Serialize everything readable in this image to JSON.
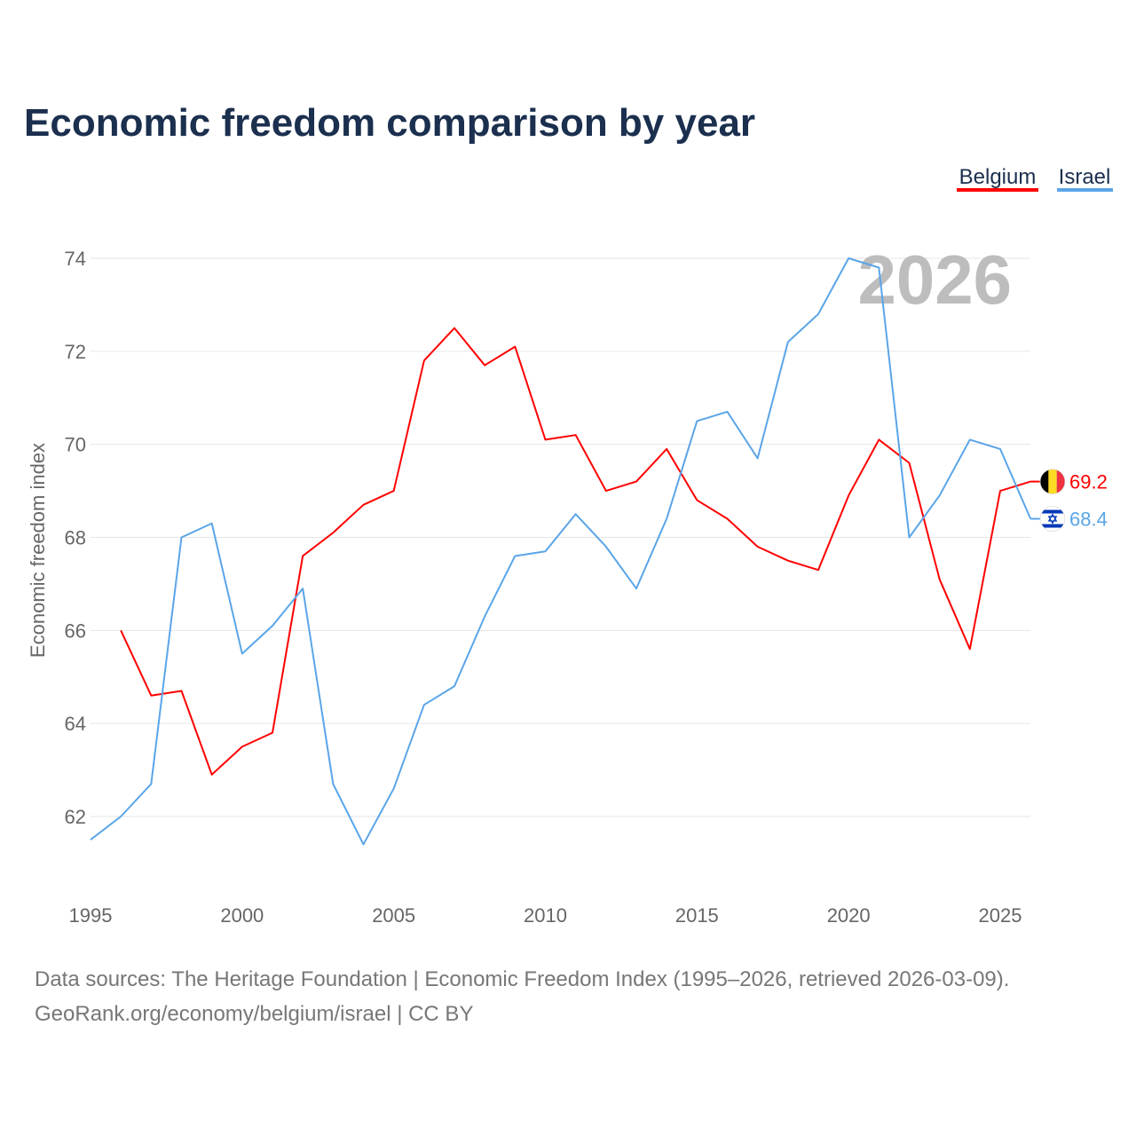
{
  "chart_data": {
    "type": "line",
    "title": "Economic freedom comparison by year",
    "xlabel": "",
    "ylabel": "Economic freedom index",
    "xlim": [
      1995,
      2026
    ],
    "ylim": [
      60.3,
      75
    ],
    "xticks": [
      1995,
      2000,
      2005,
      2010,
      2015,
      2020,
      2025
    ],
    "yticks": [
      62,
      64,
      66,
      68,
      70,
      72,
      74
    ],
    "grid": true,
    "legend_position": "top-right",
    "watermark": "2026",
    "series": [
      {
        "name": "Belgium",
        "color": "#ff0000",
        "end_label": "69.2",
        "flag": "belgium-flag",
        "x": [
          1996,
          1997,
          1998,
          1999,
          2000,
          2001,
          2002,
          2003,
          2004,
          2005,
          2006,
          2007,
          2008,
          2009,
          2010,
          2011,
          2012,
          2013,
          2014,
          2015,
          2016,
          2017,
          2018,
          2019,
          2020,
          2021,
          2022,
          2023,
          2024,
          2025,
          2026
        ],
        "values": [
          66.0,
          64.6,
          64.7,
          62.9,
          63.5,
          63.8,
          67.6,
          68.1,
          68.7,
          69.0,
          71.8,
          72.5,
          71.7,
          72.1,
          70.1,
          70.2,
          69.0,
          69.2,
          69.9,
          68.8,
          68.4,
          67.8,
          67.5,
          67.3,
          68.9,
          70.1,
          69.6,
          67.1,
          65.6,
          69.0,
          69.2
        ]
      },
      {
        "name": "Israel",
        "color": "#5aa5e8",
        "end_label": "68.4",
        "flag": "israel-flag",
        "x": [
          1995,
          1996,
          1997,
          1998,
          1999,
          2000,
          2001,
          2002,
          2003,
          2004,
          2005,
          2006,
          2007,
          2008,
          2009,
          2010,
          2011,
          2012,
          2013,
          2014,
          2015,
          2016,
          2017,
          2018,
          2019,
          2020,
          2021,
          2022,
          2023,
          2024,
          2025,
          2026
        ],
        "values": [
          61.5,
          62.0,
          62.7,
          68.0,
          68.3,
          65.5,
          66.1,
          66.9,
          62.7,
          61.4,
          62.6,
          64.4,
          64.8,
          66.3,
          67.6,
          67.7,
          68.5,
          67.8,
          66.9,
          68.4,
          70.5,
          70.7,
          69.7,
          72.2,
          72.8,
          74.0,
          73.8,
          68.0,
          68.9,
          70.1,
          69.9,
          68.4
        ]
      }
    ]
  },
  "footer": {
    "line1": "Data sources: The Heritage Foundation | Economic Freedom Index (1995–2026, retrieved 2026-03-09).",
    "line2": "GeoRank.org/economy/belgium/israel | CC BY"
  }
}
